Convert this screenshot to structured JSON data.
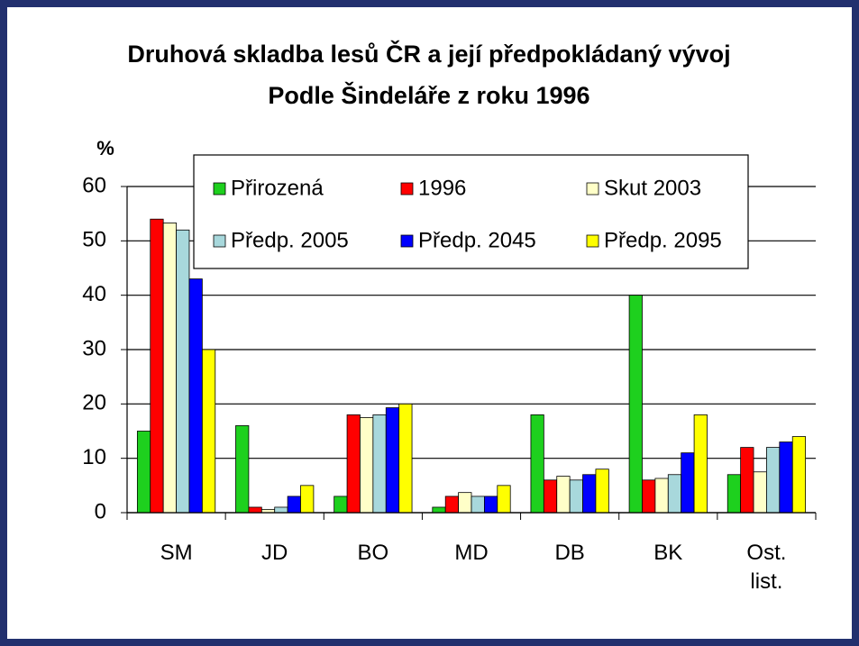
{
  "chart_data": {
    "type": "bar",
    "title": "Druhová skladba lesů ČR a její předpokládaný vývoj",
    "subtitle": "Podle Šindeláře z roku 1996",
    "ylabel": "%",
    "categories": [
      "SM",
      "JD",
      "BO",
      "MD",
      "DB",
      "BK",
      "Ost. list."
    ],
    "series": [
      {
        "name": "Přirozená",
        "color": "#1ed01e",
        "values": [
          15,
          16,
          3,
          1,
          18,
          40,
          7
        ]
      },
      {
        "name": "1996",
        "color": "#ff0000",
        "values": [
          54,
          1,
          18,
          3,
          6,
          6,
          12
        ]
      },
      {
        "name": "Skut 2003",
        "color": "#ffffc8",
        "values": [
          53.3,
          0.6,
          17.5,
          3.7,
          6.7,
          6.3,
          7.5
        ]
      },
      {
        "name": "Předp. 2005",
        "color": "#a8d8dc",
        "values": [
          52,
          1,
          18,
          3,
          6,
          7,
          12
        ]
      },
      {
        "name": "Předp. 2045",
        "color": "#0000ff",
        "values": [
          43,
          3,
          19.3,
          3,
          7,
          11,
          13
        ]
      },
      {
        "name": "Předp. 2095",
        "color": "#ffff00",
        "values": [
          30,
          5,
          20,
          5,
          8,
          18,
          14
        ]
      }
    ],
    "ylim": [
      0,
      60
    ],
    "yticks": [
      0,
      10,
      20,
      30,
      40,
      50,
      60
    ],
    "grid": true
  }
}
